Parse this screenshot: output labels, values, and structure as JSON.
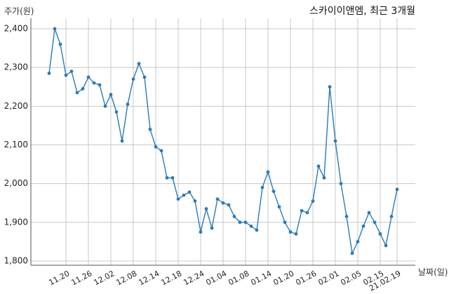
{
  "chart_data": {
    "type": "line",
    "title": "스카이이앤엠, 최근 3개월",
    "ylabel": "주가(원)",
    "xlabel": "날짜(일)",
    "ylim": [
      1800,
      2400
    ],
    "yticks": [
      1800,
      1900,
      2000,
      2100,
      2200,
      2300,
      2400
    ],
    "ytick_labels": [
      "1,800",
      "1,900",
      "2,000",
      "2,100",
      "2,200",
      "2,300",
      "2,400"
    ],
    "grid": true,
    "line_color": "#2b7bb9",
    "x_tick_labels": [
      {
        "index": 3,
        "label": "11.20"
      },
      {
        "index": 7,
        "label": "11.26"
      },
      {
        "index": 11,
        "label": "12.02"
      },
      {
        "index": 15,
        "label": "12.08"
      },
      {
        "index": 19,
        "label": "12.14"
      },
      {
        "index": 23,
        "label": "12.18"
      },
      {
        "index": 27,
        "label": "12.24"
      },
      {
        "index": 31,
        "label": "01.04"
      },
      {
        "index": 35,
        "label": "01.08"
      },
      {
        "index": 39,
        "label": "01.14"
      },
      {
        "index": 43,
        "label": "01.20"
      },
      {
        "index": 47,
        "label": "01.26"
      },
      {
        "index": 51,
        "label": "02.01"
      },
      {
        "index": 55,
        "label": "02.05"
      },
      {
        "index": 59,
        "label": "02.15"
      },
      {
        "index": 62,
        "label": "21.02.19"
      }
    ],
    "values": [
      2285,
      2400,
      2360,
      2280,
      2290,
      2235,
      2245,
      2275,
      2260,
      2255,
      2200,
      2230,
      2185,
      2110,
      2205,
      2270,
      2310,
      2275,
      2140,
      2095,
      2085,
      2015,
      2015,
      1960,
      1970,
      1978,
      1955,
      1875,
      1935,
      1885,
      1960,
      1950,
      1945,
      1915,
      1900,
      1900,
      1890,
      1880,
      1990,
      2030,
      1980,
      1940,
      1900,
      1875,
      1870,
      1930,
      1925,
      1955,
      2045,
      2015,
      2250,
      2110,
      2000,
      1915,
      1820,
      1850,
      1890,
      1925,
      1900,
      1870,
      1840,
      1915,
      1985
    ]
  }
}
